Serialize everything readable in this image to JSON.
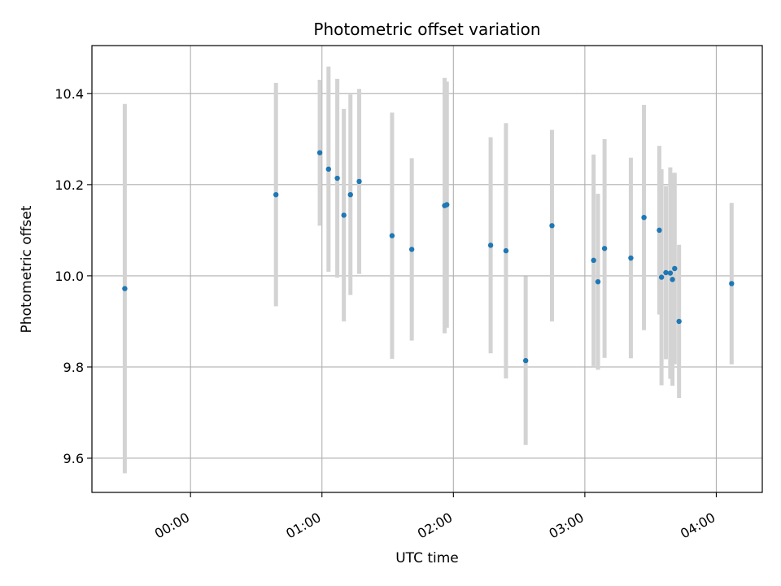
{
  "chart_data": {
    "type": "scatter",
    "title": "Photometric offset variation",
    "xlabel": "UTC time",
    "ylabel": "Photometric offset",
    "xlim": [
      "23:15",
      "04:21"
    ],
    "ylim": [
      9.525,
      10.505
    ],
    "x_ticks": [
      "00:00",
      "01:00",
      "02:00",
      "03:00",
      "04:00"
    ],
    "y_ticks": [
      "9.6",
      "9.8",
      "10.0",
      "10.2",
      "10.4"
    ],
    "grid": true,
    "marker_color": "#1f77b4",
    "errorbar_color": "#d3d3d3",
    "points": [
      {
        "x": "23:30",
        "y": 9.972,
        "yerr": 0.405
      },
      {
        "x": "00:39",
        "y": 10.178,
        "yerr": 0.245
      },
      {
        "x": "00:59",
        "y": 10.27,
        "yerr": 0.16
      },
      {
        "x": "01:03",
        "y": 10.234,
        "yerr": 0.225
      },
      {
        "x": "01:07",
        "y": 10.214,
        "yerr": 0.218
      },
      {
        "x": "01:10",
        "y": 10.133,
        "yerr": 0.233
      },
      {
        "x": "01:13",
        "y": 10.178,
        "yerr": 0.22
      },
      {
        "x": "01:17",
        "y": 10.207,
        "yerr": 0.203
      },
      {
        "x": "01:32",
        "y": 10.088,
        "yerr": 0.27
      },
      {
        "x": "01:41",
        "y": 10.058,
        "yerr": 0.2
      },
      {
        "x": "01:56",
        "y": 10.154,
        "yerr": 0.28
      },
      {
        "x": "01:57",
        "y": 10.156,
        "yerr": 0.27
      },
      {
        "x": "02:17",
        "y": 10.067,
        "yerr": 0.237
      },
      {
        "x": "02:24",
        "y": 10.055,
        "yerr": 0.28
      },
      {
        "x": "02:33",
        "y": 9.814,
        "yerr": 0.185
      },
      {
        "x": "02:45",
        "y": 10.11,
        "yerr": 0.21
      },
      {
        "x": "03:04",
        "y": 10.034,
        "yerr": 0.232
      },
      {
        "x": "03:06",
        "y": 9.987,
        "yerr": 0.193
      },
      {
        "x": "03:09",
        "y": 10.06,
        "yerr": 0.24
      },
      {
        "x": "03:21",
        "y": 10.039,
        "yerr": 0.22
      },
      {
        "x": "03:27",
        "y": 10.128,
        "yerr": 0.247
      },
      {
        "x": "03:34",
        "y": 10.1,
        "yerr": 0.185
      },
      {
        "x": "03:35",
        "y": 9.997,
        "yerr": 0.237
      },
      {
        "x": "03:37",
        "y": 10.007,
        "yerr": 0.19
      },
      {
        "x": "03:39",
        "y": 10.006,
        "yerr": 0.232
      },
      {
        "x": "03:40",
        "y": 9.992,
        "yerr": 0.233
      },
      {
        "x": "03:41",
        "y": 10.016,
        "yerr": 0.21
      },
      {
        "x": "03:43",
        "y": 9.9,
        "yerr": 0.168
      },
      {
        "x": "04:07",
        "y": 9.983,
        "yerr": 0.177
      }
    ]
  }
}
